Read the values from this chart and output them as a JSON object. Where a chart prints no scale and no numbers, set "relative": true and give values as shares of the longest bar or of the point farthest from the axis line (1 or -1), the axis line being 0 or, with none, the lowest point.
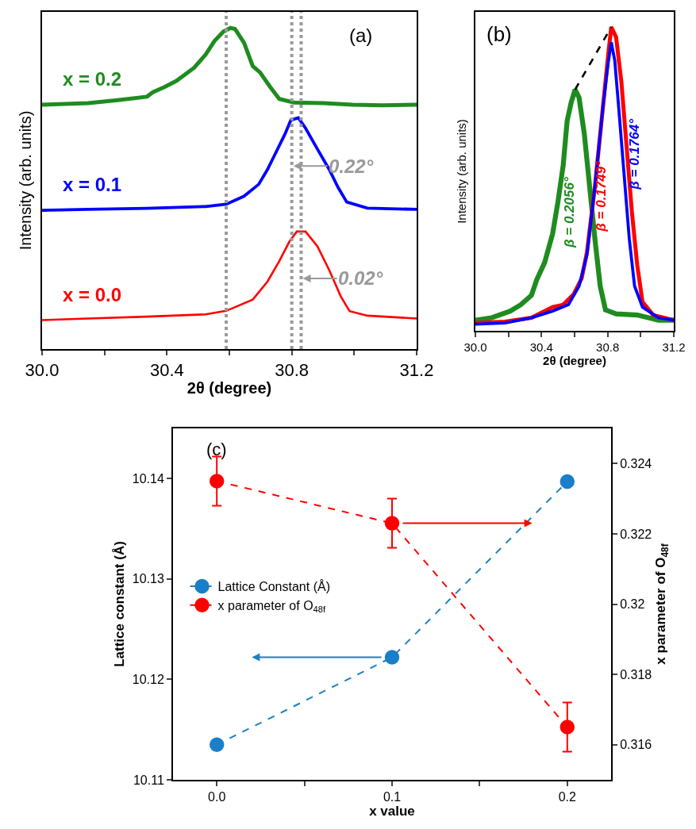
{
  "chart_data": [
    {
      "type": "line",
      "relative": true,
      "xlabel": "2θ (degree)",
      "ylabel": "Intensity (arb. units)",
      "xlim": [
        30.0,
        31.2
      ],
      "xticks": [
        {
          "value": 30.0,
          "label": "30.0"
        },
        {
          "value": 30.2,
          "label": null
        },
        {
          "value": 30.4,
          "label": "30.4"
        },
        {
          "value": 30.6,
          "label": null
        },
        {
          "value": 30.8,
          "label": "30.8"
        },
        {
          "value": 31.0,
          "label": null
        },
        {
          "value": 31.2,
          "label": "31.2"
        }
      ],
      "series": [
        {
          "name": "x = 0.2",
          "color": "#1e8c1e",
          "x": [
            30.0,
            30.148,
            30.242,
            30.336,
            30.355,
            30.392,
            30.43,
            30.487,
            30.524,
            30.552,
            30.581,
            30.604,
            30.618,
            30.647,
            30.675,
            30.698,
            30.731,
            30.76,
            30.807,
            30.901,
            30.995,
            31.089,
            31.2
          ],
          "values": [
            0.761,
            0.766,
            0.775,
            0.786,
            0.8,
            0.816,
            0.835,
            0.876,
            0.917,
            0.959,
            0.989,
            1.0,
            0.997,
            0.954,
            0.881,
            0.862,
            0.816,
            0.779,
            0.768,
            0.766,
            0.761,
            0.759,
            0.761
          ]
        },
        {
          "name": "x = 0.1",
          "color": "#0000ff",
          "x": [
            30.0,
            30.148,
            30.336,
            30.524,
            30.59,
            30.647,
            30.694,
            30.722,
            30.75,
            30.778,
            30.797,
            30.821,
            30.844,
            30.882,
            30.92,
            30.948,
            30.976,
            31.042,
            31.2
          ],
          "values": [
            0.432,
            0.435,
            0.438,
            0.444,
            0.451,
            0.476,
            0.513,
            0.559,
            0.614,
            0.669,
            0.713,
            0.72,
            0.688,
            0.623,
            0.559,
            0.504,
            0.458,
            0.439,
            0.435
          ]
        },
        {
          "name": "x = 0.0",
          "color": "#ff0000",
          "x": [
            30.0,
            30.148,
            30.336,
            30.524,
            30.59,
            30.675,
            30.722,
            30.76,
            30.792,
            30.816,
            30.844,
            30.882,
            30.92,
            30.957,
            30.985,
            31.042,
            31.2
          ],
          "values": [
            0.09,
            0.095,
            0.101,
            0.108,
            0.119,
            0.154,
            0.21,
            0.274,
            0.334,
            0.366,
            0.366,
            0.32,
            0.246,
            0.164,
            0.118,
            0.104,
            0.095
          ]
        }
      ],
      "ref_lines": [
        {
          "axis": "x",
          "value": 30.59,
          "color": "#999999",
          "line_style": "dotted"
        },
        {
          "axis": "x",
          "value": 30.8,
          "color": "#999999",
          "line_style": "dotted"
        },
        {
          "axis": "x",
          "value": 30.83,
          "color": "#999999",
          "line_style": "dotted"
        }
      ],
      "annotations": [
        "(a)",
        {
          "text": "0.22°",
          "x": 30.8,
          "y": 0.57
        },
        {
          "text": "0.02°",
          "x": 30.83,
          "y": 0.22
        }
      ]
    },
    {
      "type": "line",
      "relative": true,
      "xlabel": "2θ (degree)",
      "ylabel": "Intensity (arb. units)",
      "xlim": [
        30.0,
        31.2
      ],
      "xticks": [
        {
          "value": 30.0,
          "label": "30.0"
        },
        {
          "value": 30.2,
          "label": null
        },
        {
          "value": 30.4,
          "label": "30.4"
        },
        {
          "value": 30.6,
          "label": null
        },
        {
          "value": 30.8,
          "label": "30.8"
        },
        {
          "value": 31.0,
          "label": null
        },
        {
          "value": 31.2,
          "label": "31.2"
        }
      ],
      "series": [
        {
          "color": "#1e8c1e",
          "x": [
            30.0,
            30.099,
            30.211,
            30.275,
            30.339,
            30.371,
            30.419,
            30.467,
            30.499,
            30.531,
            30.555,
            30.579,
            30.603,
            30.627,
            30.659,
            30.691,
            30.723,
            30.755,
            30.787,
            30.851,
            30.979,
            31.107,
            31.2
          ],
          "values": [
            0.035,
            0.043,
            0.065,
            0.086,
            0.117,
            0.168,
            0.225,
            0.319,
            0.423,
            0.544,
            0.691,
            0.751,
            0.794,
            0.768,
            0.648,
            0.475,
            0.302,
            0.147,
            0.069,
            0.056,
            0.052,
            0.035,
            0.035
          ]
        },
        {
          "color": "#ff0000",
          "x": [
            30.0,
            30.179,
            30.339,
            30.467,
            30.531,
            30.595,
            30.643,
            30.675,
            30.723,
            30.771,
            30.803,
            30.822,
            30.851,
            30.883,
            30.915,
            30.947,
            30.979,
            31.011,
            31.075,
            31.2
          ],
          "values": [
            0.026,
            0.03,
            0.043,
            0.078,
            0.086,
            0.121,
            0.173,
            0.259,
            0.475,
            0.734,
            0.907,
            1.0,
            0.967,
            0.82,
            0.604,
            0.389,
            0.216,
            0.095,
            0.052,
            0.035
          ]
        },
        {
          "color": "#0000ff",
          "x": [
            30.0,
            30.179,
            30.339,
            30.467,
            30.563,
            30.627,
            30.675,
            30.723,
            30.771,
            30.803,
            30.822,
            30.843,
            30.867,
            30.899,
            30.931,
            30.963,
            31.011,
            31.107,
            31.2
          ],
          "values": [
            0.022,
            0.026,
            0.043,
            0.065,
            0.086,
            0.147,
            0.251,
            0.475,
            0.734,
            0.881,
            0.95,
            0.89,
            0.734,
            0.518,
            0.302,
            0.147,
            0.078,
            0.043,
            0.035
          ]
        },
        {
          "color": "#000000",
          "line_style": "dashed",
          "x": [
            30.603,
            30.822
          ],
          "values": [
            0.794,
            1.0
          ]
        }
      ],
      "annotations": [
        "(b)",
        "β = 0.2056°",
        "β = 0.1749°",
        "β = 0.1764°"
      ]
    },
    {
      "type": "line",
      "xlabel": "x value",
      "ylabel": "Lattice constant (Å)",
      "y2label": "x parameter of O$_{48f}$",
      "xlim": [
        -0.025,
        0.225
      ],
      "xticks": [
        {
          "value": 0,
          "label": "0.0"
        },
        {
          "value": 0.05,
          "label": null
        },
        {
          "value": 0.1,
          "label": "0.1"
        },
        {
          "value": 0.15,
          "label": null
        },
        {
          "value": 0.2,
          "label": "0.2"
        }
      ],
      "ylim": [
        10.11,
        10.145
      ],
      "yticks": [
        10.11,
        10.12,
        10.13,
        10.14
      ],
      "y2lim": [
        0.315,
        0.325
      ],
      "y2ticks": [
        0.316,
        0.318,
        0.32,
        0.322,
        0.324
      ],
      "line_style": "dashed",
      "legend": "left",
      "series": [
        {
          "name": "Lattice Constant (Å)",
          "color": "#1a7fc8",
          "marker": "circle",
          "x": [
            0,
            0.1,
            0.2
          ],
          "values": [
            10.1135,
            10.1222,
            10.1397
          ]
        },
        {
          "name": "x parameter of O$_{48f}$",
          "color": "#ff0000",
          "marker": "circle",
          "axis": "y2",
          "x": [
            0,
            0.1,
            0.2
          ],
          "values": [
            0.3235,
            0.3223,
            0.3165
          ],
          "errors": [
            0.0007,
            0.0007,
            0.0007
          ]
        }
      ],
      "annotations": [
        "(c)"
      ]
    }
  ]
}
